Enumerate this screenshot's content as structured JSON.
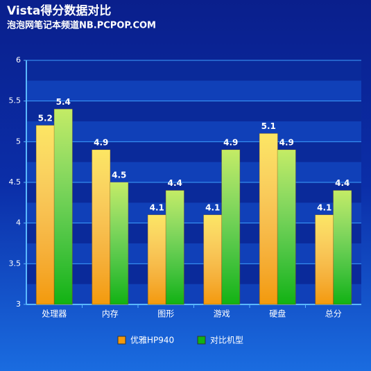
{
  "chart_data": {
    "type": "bar",
    "title": "Vista得分数据对比",
    "subtitle": "泡泡网笔记本频道NB.PCPOP.COM",
    "categories": [
      "处理器",
      "内存",
      "图形",
      "游戏",
      "硬盘",
      "总分"
    ],
    "series": [
      {
        "name": "优雅HP940",
        "color": "#f39a0c",
        "values": [
          5.2,
          4.9,
          4.1,
          4.1,
          5.1,
          4.1
        ]
      },
      {
        "name": "对比机型",
        "color": "#12b212",
        "values": [
          5.4,
          4.5,
          4.4,
          4.9,
          4.9,
          4.4
        ]
      }
    ],
    "ylim": [
      3,
      6
    ],
    "yticks": [
      3,
      3.5,
      4,
      4.5,
      5,
      5.5,
      6
    ],
    "grid": true,
    "legend": "bottom"
  }
}
